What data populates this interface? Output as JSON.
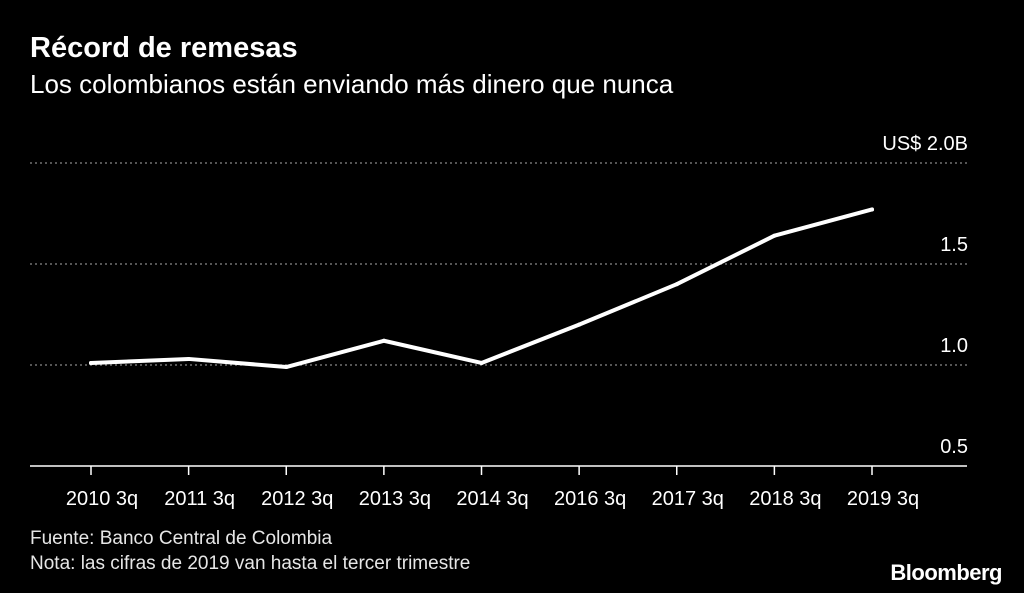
{
  "title": "Récord de remesas",
  "subtitle": "Los colombianos están enviando más dinero que nunca",
  "source": "Fuente: Banco Central de Colombia",
  "note": "Nota: las cifras de 2019 van hasta el tercer trimestre",
  "logo": "Bloomberg",
  "colors": {
    "background": "#000000",
    "line": "#ffffff",
    "grid": "#888888",
    "text": "#ffffff"
  },
  "chart_data": {
    "type": "line",
    "x": [
      "2010 3q",
      "2011 3q",
      "2012 3q",
      "2013 3q",
      "2014 3q",
      "2016 3q",
      "2017 3q",
      "2018 3q",
      "2019 3q"
    ],
    "series": [
      {
        "values": [
          1.01,
          1.03,
          0.99,
          1.12,
          1.01,
          1.2,
          1.4,
          1.64,
          1.77
        ]
      }
    ],
    "yticks": [
      0.5,
      1.0,
      1.5,
      2.0
    ],
    "ytick_labels": [
      "0.5",
      "1.0",
      "1.5",
      "US$ 2.0B"
    ],
    "ylim": [
      0.5,
      2.0
    ],
    "y_axis_position": "right",
    "grid": "dotted horizontal"
  }
}
